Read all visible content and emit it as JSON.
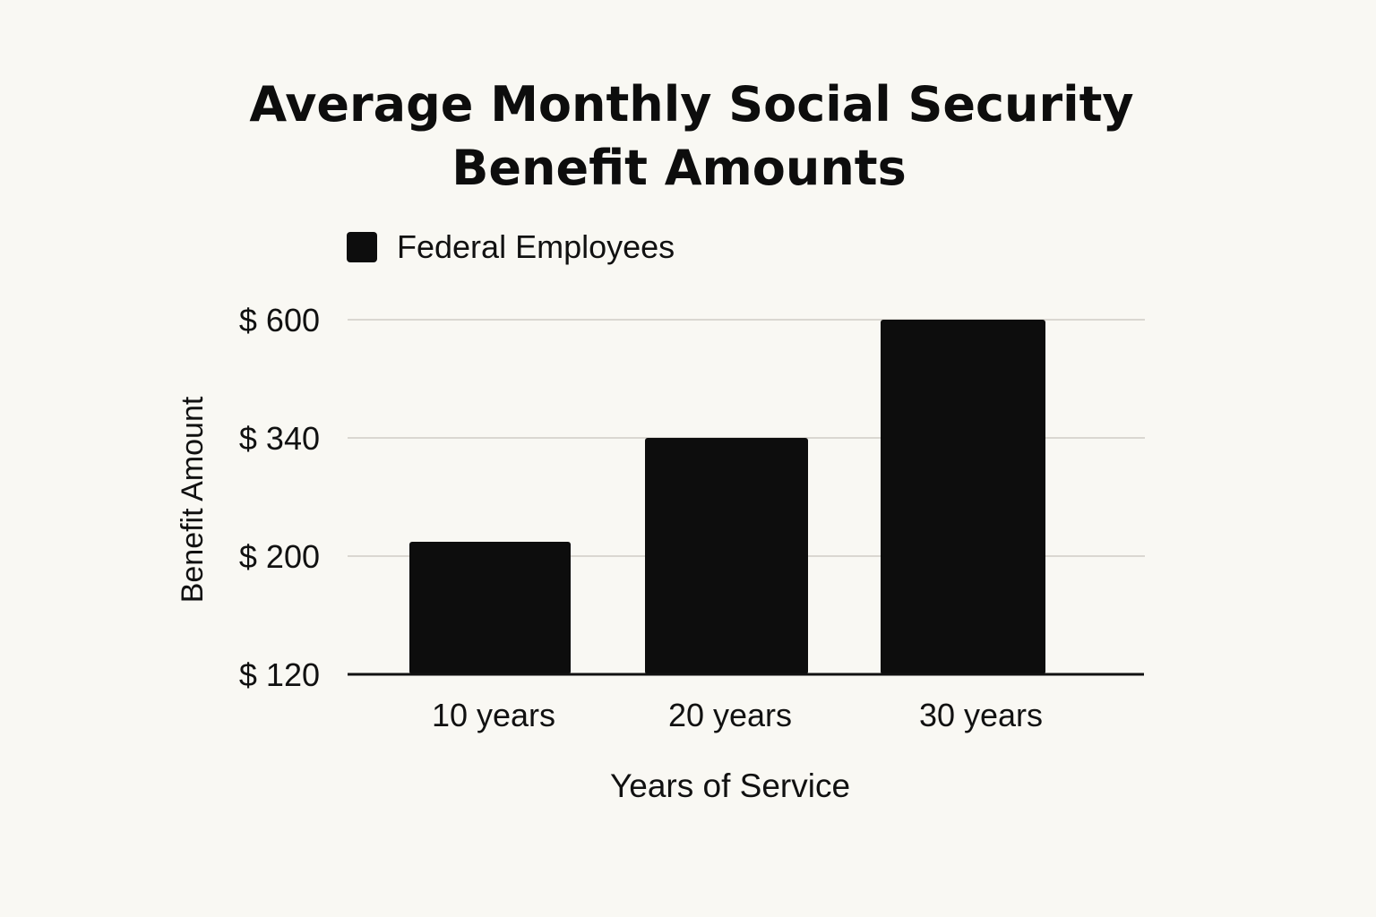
{
  "chart_data": {
    "type": "bar",
    "title": [
      "Average Monthly Social Security",
      "Benefit Amounts"
    ],
    "xlabel": "Years of Service",
    "ylabel": "Benefit Amount",
    "categories": [
      "10 years",
      "20 years",
      "30 years"
    ],
    "series": [
      {
        "name": "Federal Employees",
        "values": [
          217,
          340,
          600
        ],
        "color": "#0d0d0d"
      }
    ],
    "y_ticks": [
      120,
      200,
      340,
      600
    ],
    "y_tick_labels": [
      "$ 120",
      "$ 200",
      "$ 340",
      "$ 600"
    ],
    "y_scale": "piecewise (ticks evenly spaced)",
    "ylim": [
      120,
      600
    ],
    "grid": true,
    "legend_position": "top-left",
    "colors": {
      "background": "#f9f8f3",
      "grid": "#cfccc6",
      "axis": "#111111"
    }
  }
}
